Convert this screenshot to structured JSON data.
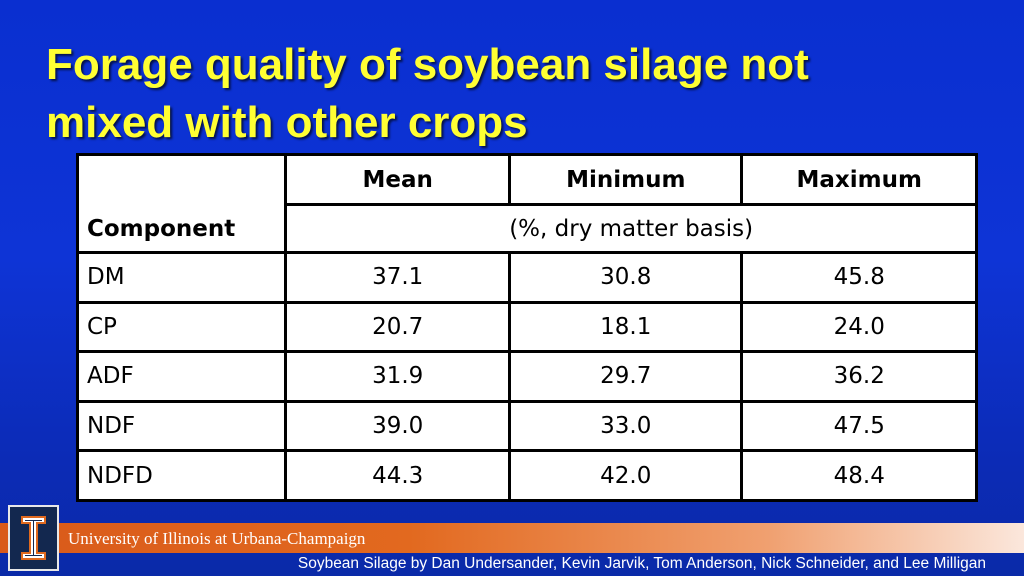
{
  "slide": {
    "title_line1": "Forage quality of soybean silage not",
    "title_line2": "mixed with other crops"
  },
  "table": {
    "headers": {
      "component": "Component",
      "mean": "Mean",
      "minimum": "Minimum",
      "maximum": "Maximum",
      "units": "(%, dry matter basis)"
    },
    "rows": [
      {
        "component": "DM",
        "mean": "37.1",
        "minimum": "30.8",
        "maximum": "45.8"
      },
      {
        "component": "CP",
        "mean": "20.7",
        "minimum": "18.1",
        "maximum": "24.0"
      },
      {
        "component": "ADF",
        "mean": "31.9",
        "minimum": "29.7",
        "maximum": "36.2"
      },
      {
        "component": "NDF",
        "mean": "39.0",
        "minimum": "33.0",
        "maximum": "47.5"
      },
      {
        "component": "NDFD",
        "mean": "44.3",
        "minimum": "42.0",
        "maximum": "48.4"
      }
    ]
  },
  "footer": {
    "university": "University of Illinois at Urbana-Champaign",
    "credit": "Soybean Silage by Dan Undersander, Kevin Jarvik, Tom Anderson, Nick Schneider, and Lee Milligan",
    "logo_icon": "illinois-block-i-icon"
  },
  "colors": {
    "background": "#0e34d6",
    "title": "#ffff33",
    "footer_bar": "#e2691f",
    "logo_bg": "#13284f"
  }
}
